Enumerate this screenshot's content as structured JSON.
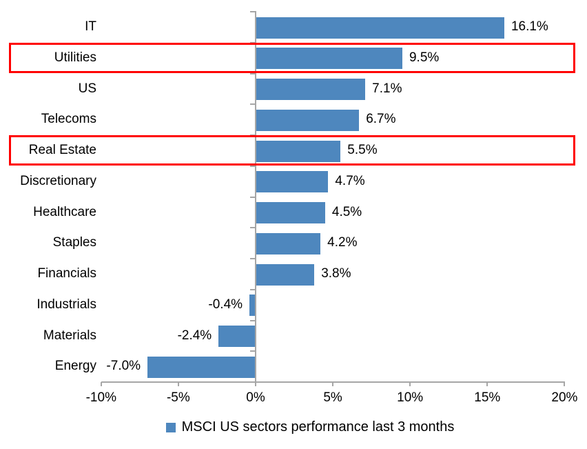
{
  "chart_data": {
    "type": "bar",
    "orientation": "horizontal",
    "title": "",
    "xlabel": "",
    "ylabel": "",
    "categories": [
      "IT",
      "Utilities",
      "US",
      "Telecoms",
      "Real Estate",
      "Discretionary",
      "Healthcare",
      "Staples",
      "Financials",
      "Industrials",
      "Materials",
      "Energy"
    ],
    "values": [
      16.1,
      9.5,
      7.1,
      6.7,
      5.5,
      4.7,
      4.5,
      4.2,
      3.8,
      -0.4,
      -2.4,
      -7.0
    ],
    "data_labels": [
      "16.1%",
      "9.5%",
      "7.1%",
      "6.7%",
      "5.5%",
      "4.7%",
      "4.5%",
      "4.2%",
      "3.8%",
      "-0.4%",
      "-2.4%",
      "-7.0%"
    ],
    "highlighted_categories": [
      "Utilities",
      "Real Estate"
    ],
    "x_ticks": [
      "-10%",
      "-5%",
      "0%",
      "5%",
      "10%",
      "15%",
      "20%"
    ],
    "x_tick_values": [
      -10,
      -5,
      0,
      5,
      10,
      15,
      20
    ],
    "xlim": [
      -10,
      20
    ],
    "grid": "off",
    "legend": "MSCI US sectors performance last 3 months",
    "legend_position": "bottom-center",
    "bar_color": "#4E87BE",
    "highlight_color": "#FF0000",
    "axis_color": "#A6A6A6"
  }
}
